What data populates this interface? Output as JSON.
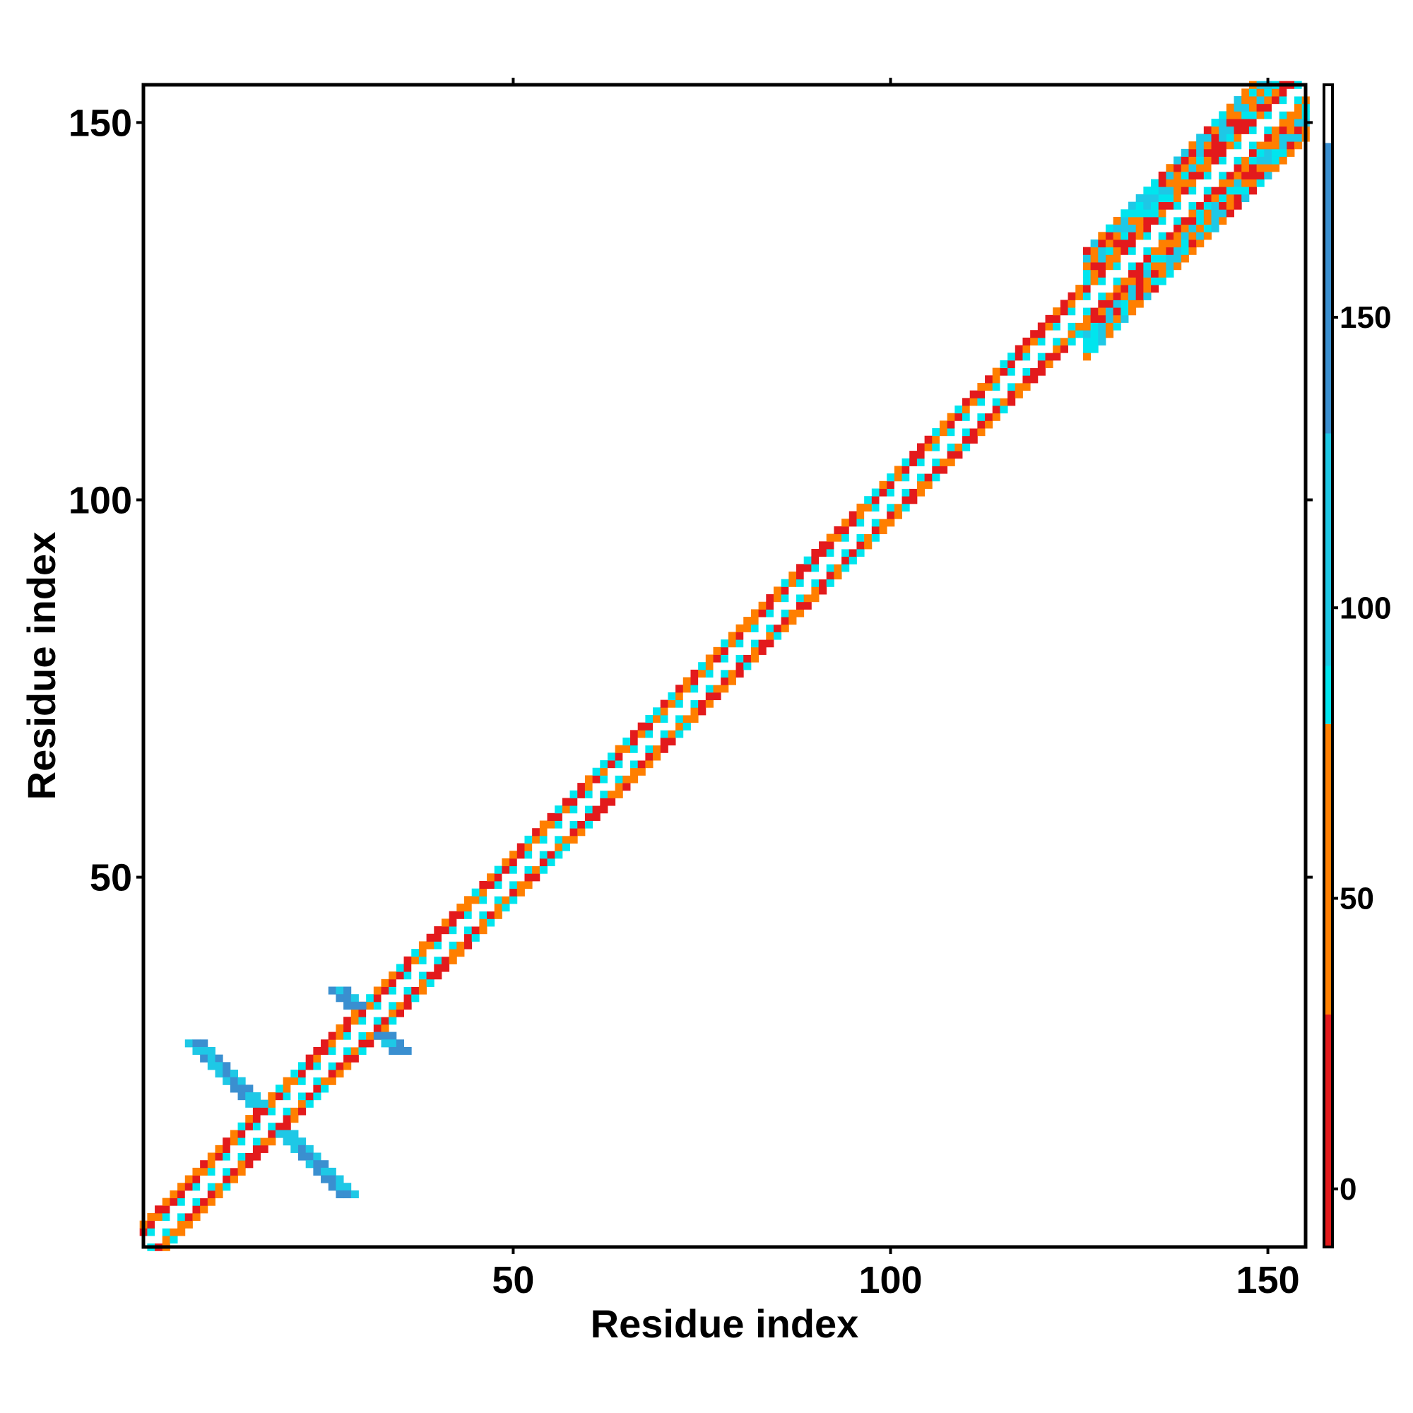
{
  "chart_data": {
    "type": "heatmap",
    "title": "",
    "xlabel": "Residue index",
    "ylabel": "Residue index",
    "xlim": [
      1,
      155
    ],
    "ylim": [
      1,
      155
    ],
    "x_ticks": [
      50,
      100,
      150
    ],
    "y_ticks": [
      50,
      100,
      150
    ],
    "x_tick_labels": [
      "50",
      "100",
      "150"
    ],
    "y_tick_labels": [
      "50",
      "100",
      "150"
    ],
    "grid": false,
    "legend": "colorbar-right",
    "colorbar": {
      "range": [
        -10,
        190
      ],
      "ticks": [
        0,
        50,
        100,
        150
      ],
      "tick_labels": [
        "0",
        "50",
        "100",
        "150"
      ],
      "bands": [
        {
          "from": -10,
          "to": 30,
          "color": "#e31a1c"
        },
        {
          "from": 30,
          "to": 80,
          "color": "#ff7f00"
        },
        {
          "from": 80,
          "to": 90,
          "color": "#00e5ee"
        },
        {
          "from": 90,
          "to": 130,
          "color": "#1ec8e6"
        },
        {
          "from": 130,
          "to": 180,
          "color": "#3a8fd0"
        },
        {
          "from": 180,
          "to": 190,
          "color": "#ffffff"
        }
      ]
    },
    "diagonal_band": {
      "from_residue": 1,
      "to_residue": 155,
      "half_width_by_region": [
        {
          "from": 1,
          "to": 125,
          "half_width": 3
        },
        {
          "from": 125,
          "to": 155,
          "half_width": 7
        }
      ],
      "pattern": "alternating cyan/red/orange checkerboard along diagonal"
    },
    "off_diagonal_features": [
      {
        "name": "cross-strand",
        "center": [
          18,
          18
        ],
        "extent": 10,
        "value": 140
      },
      {
        "name": "small-cross",
        "center": [
          31,
          31
        ],
        "extent": 4,
        "value": 130
      }
    ]
  }
}
